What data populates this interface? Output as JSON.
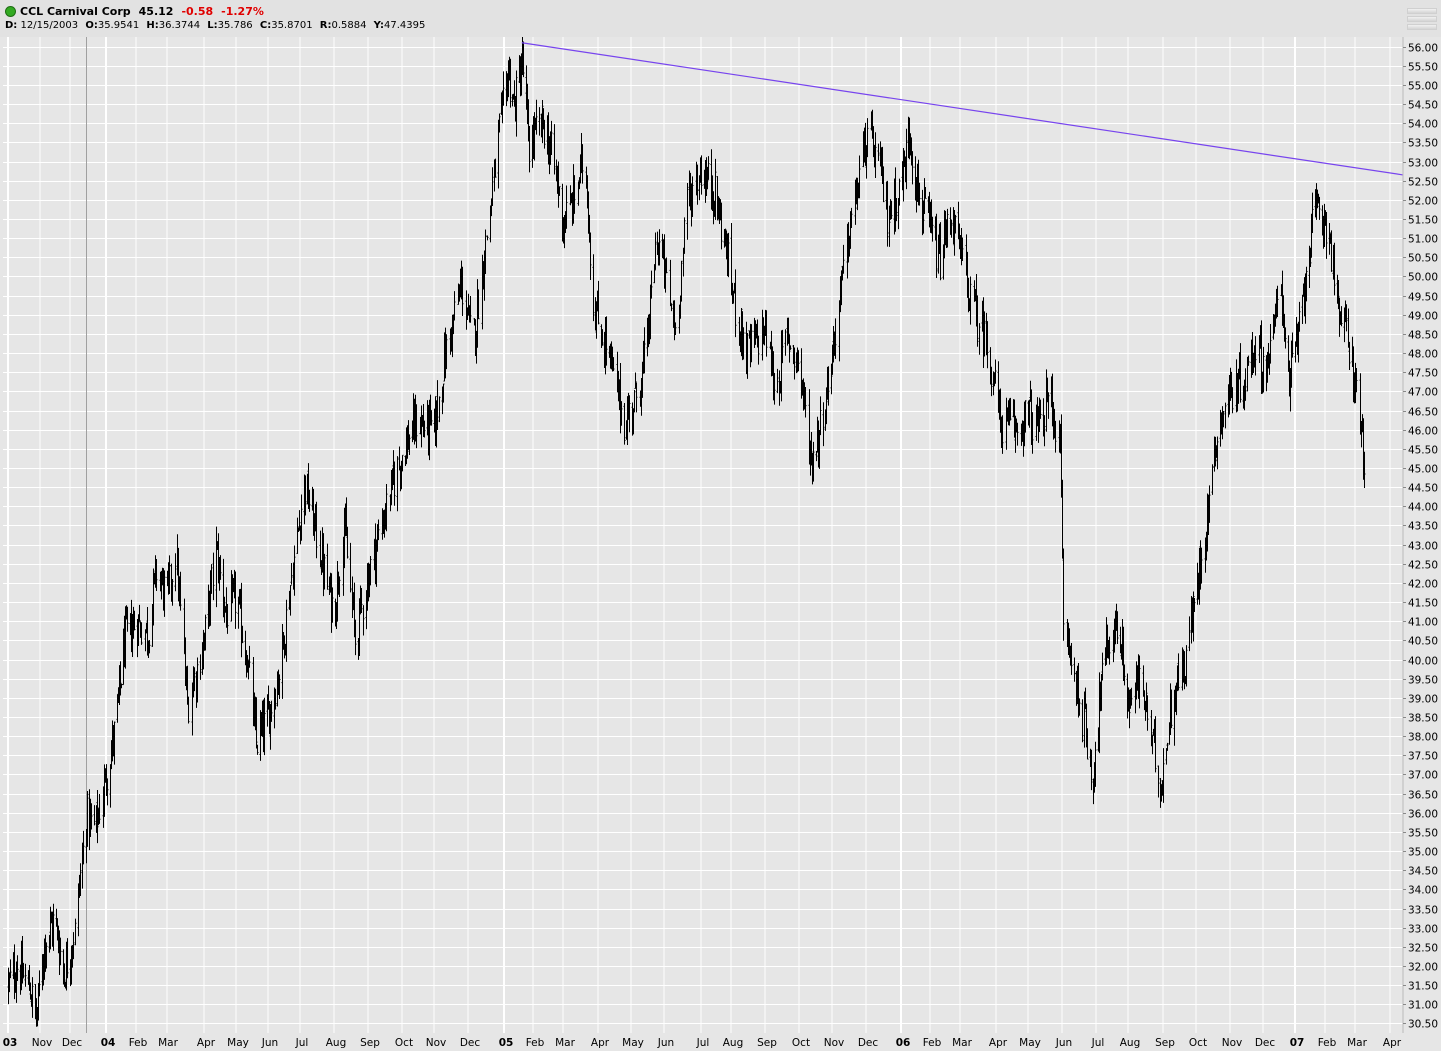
{
  "header": {
    "symbol_name": "CCL Carnival Corp",
    "last": "45.12",
    "change": "-0.58",
    "change_pct": "-1.27%",
    "ohlc": {
      "date_label": "D:",
      "date": "12/15/2003",
      "open_label": "O:",
      "open": "35.9541",
      "high_label": "H:",
      "high": "36.3744",
      "low_label": "L:",
      "low": "35.786",
      "close_label": "C:",
      "close": "35.8701",
      "range_label": "R:",
      "range": "0.5884",
      "y_label": "Y:",
      "y": "47.4395"
    },
    "status_color": "#33aa22"
  },
  "chart_data": {
    "type": "ohlc",
    "x_axis_labels": [
      "03",
      "Nov",
      "Dec",
      "04",
      "Feb",
      "Mar",
      "Apr",
      "May",
      "Jun",
      "Jul",
      "Aug",
      "Sep",
      "Oct",
      "Nov",
      "Dec",
      "05",
      "Feb",
      "Mar",
      "Apr",
      "May",
      "Jun",
      "Jul",
      "Aug",
      "Sep",
      "Oct",
      "Nov",
      "Dec",
      "06",
      "Feb",
      "Mar",
      "Apr",
      "May",
      "Jun",
      "Jul",
      "Aug",
      "Sep",
      "Oct",
      "Nov",
      "Dec",
      "07",
      "Feb",
      "Mar",
      "Apr"
    ],
    "x_axis_bold": [
      "03",
      "04",
      "05",
      "06",
      "07"
    ],
    "x_range": [
      "2003-10-01",
      "2007-04-15"
    ],
    "ylim": [
      30.25,
      56.25
    ],
    "y_ticks": [
      30.5,
      31.0,
      31.5,
      32.0,
      32.5,
      33.0,
      33.5,
      34.0,
      34.5,
      35.0,
      35.5,
      36.0,
      36.5,
      37.0,
      37.5,
      38.0,
      38.5,
      39.0,
      39.5,
      40.0,
      40.5,
      41.0,
      41.5,
      42.0,
      42.5,
      43.0,
      43.5,
      44.0,
      44.5,
      45.0,
      45.5,
      46.0,
      46.5,
      47.0,
      47.5,
      48.0,
      48.5,
      49.0,
      49.5,
      50.0,
      50.5,
      51.0,
      51.5,
      52.0,
      52.5,
      53.0,
      53.5,
      54.0,
      54.5,
      55.0,
      55.5,
      56.0
    ],
    "crosshair_date": "2003-12-15",
    "grid": true,
    "bar_color": "#000000",
    "trendline": {
      "color": "#7744ee",
      "x1": "2005-01-20",
      "y1": 56.1,
      "x2": "2007-04-15",
      "y2": 52.65
    },
    "price_path": [
      [
        "2003-10-01",
        31.5
      ],
      [
        "2003-10-10",
        32.0
      ],
      [
        "2003-10-22",
        31.4
      ],
      [
        "2003-10-28",
        30.6
      ],
      [
        "2003-11-05",
        32.6
      ],
      [
        "2003-11-15",
        33.2
      ],
      [
        "2003-11-25",
        31.8
      ],
      [
        "2003-12-05",
        32.9
      ],
      [
        "2003-12-15",
        35.9
      ],
      [
        "2003-12-22",
        35.6
      ],
      [
        "2003-12-31",
        36.8
      ],
      [
        "2004-01-10",
        38.2
      ],
      [
        "2004-01-20",
        40.5
      ],
      [
        "2004-02-01",
        41.0
      ],
      [
        "2004-02-12",
        40.7
      ],
      [
        "2004-02-20",
        42.3
      ],
      [
        "2004-03-01",
        41.6
      ],
      [
        "2004-03-08",
        42.8
      ],
      [
        "2004-03-18",
        38.8
      ],
      [
        "2004-04-01",
        40.5
      ],
      [
        "2004-04-12",
        42.8
      ],
      [
        "2004-04-22",
        41.2
      ],
      [
        "2004-05-01",
        41.6
      ],
      [
        "2004-05-12",
        40.0
      ],
      [
        "2004-05-20",
        37.8
      ],
      [
        "2004-06-01",
        38.5
      ],
      [
        "2004-06-12",
        39.8
      ],
      [
        "2004-06-24",
        42.4
      ],
      [
        "2004-07-05",
        44.6
      ],
      [
        "2004-07-15",
        43.4
      ],
      [
        "2004-07-25",
        42.0
      ],
      [
        "2004-08-01",
        41.2
      ],
      [
        "2004-08-10",
        43.6
      ],
      [
        "2004-08-20",
        40.5
      ],
      [
        "2004-09-01",
        42.2
      ],
      [
        "2004-09-15",
        43.8
      ],
      [
        "2004-10-01",
        45.4
      ],
      [
        "2004-10-15",
        46.2
      ],
      [
        "2004-11-01",
        46.0
      ],
      [
        "2004-11-10",
        47.8
      ],
      [
        "2004-11-25",
        49.8
      ],
      [
        "2004-12-05",
        48.2
      ],
      [
        "2004-12-15",
        50.6
      ],
      [
        "2004-12-28",
        53.8
      ],
      [
        "2005-01-05",
        55.4
      ],
      [
        "2005-01-12",
        54.4
      ],
      [
        "2005-01-20",
        55.6
      ],
      [
        "2005-01-28",
        53.4
      ],
      [
        "2005-02-10",
        54.0
      ],
      [
        "2005-02-20",
        53.0
      ],
      [
        "2005-03-01",
        51.4
      ],
      [
        "2005-03-10",
        52.0
      ],
      [
        "2005-03-20",
        53.2
      ],
      [
        "2005-03-28",
        49.2
      ],
      [
        "2005-04-10",
        48.0
      ],
      [
        "2005-04-25",
        46.2
      ],
      [
        "2005-05-05",
        46.8
      ],
      [
        "2005-05-15",
        48.0
      ],
      [
        "2005-05-25",
        51.0
      ],
      [
        "2005-06-01",
        50.2
      ],
      [
        "2005-06-10",
        48.6
      ],
      [
        "2005-06-20",
        52.0
      ],
      [
        "2005-07-01",
        52.8
      ],
      [
        "2005-07-15",
        52.2
      ],
      [
        "2005-07-25",
        51.0
      ],
      [
        "2005-08-05",
        49.2
      ],
      [
        "2005-08-15",
        48.0
      ],
      [
        "2005-09-01",
        48.6
      ],
      [
        "2005-09-10",
        47.0
      ],
      [
        "2005-09-20",
        48.4
      ],
      [
        "2005-10-01",
        47.8
      ],
      [
        "2005-10-12",
        45.2
      ],
      [
        "2005-10-22",
        46.2
      ],
      [
        "2005-11-01",
        48.0
      ],
      [
        "2005-11-15",
        51.0
      ],
      [
        "2005-12-01",
        53.6
      ],
      [
        "2005-12-10",
        53.2
      ],
      [
        "2005-12-20",
        51.6
      ],
      [
        "2006-01-01",
        52.4
      ],
      [
        "2006-01-10",
        53.8
      ],
      [
        "2006-01-20",
        52.0
      ],
      [
        "2006-02-01",
        51.2
      ],
      [
        "2006-02-10",
        50.4
      ],
      [
        "2006-02-20",
        51.6
      ],
      [
        "2006-03-01",
        50.6
      ],
      [
        "2006-03-12",
        49.2
      ],
      [
        "2006-03-25",
        48.2
      ],
      [
        "2006-04-05",
        46.2
      ],
      [
        "2006-04-20",
        46.0
      ],
      [
        "2006-05-01",
        46.4
      ],
      [
        "2006-05-12",
        46.0
      ],
      [
        "2006-05-20",
        47.0
      ],
      [
        "2006-05-30",
        45.6
      ],
      [
        "2006-06-02",
        41.0
      ],
      [
        "2006-06-10",
        39.8
      ],
      [
        "2006-06-20",
        38.4
      ],
      [
        "2006-06-28",
        37.0
      ],
      [
        "2006-07-05",
        39.2
      ],
      [
        "2006-07-12",
        40.4
      ],
      [
        "2006-07-22",
        41.0
      ],
      [
        "2006-08-01",
        38.8
      ],
      [
        "2006-08-12",
        39.5
      ],
      [
        "2006-08-22",
        37.8
      ],
      [
        "2006-08-30",
        36.8
      ],
      [
        "2006-09-10",
        39.2
      ],
      [
        "2006-09-20",
        39.8
      ],
      [
        "2006-10-01",
        41.8
      ],
      [
        "2006-10-10",
        43.6
      ],
      [
        "2006-10-20",
        46.0
      ],
      [
        "2006-11-01",
        47.0
      ],
      [
        "2006-11-15",
        47.4
      ],
      [
        "2006-11-25",
        48.4
      ],
      [
        "2006-12-01",
        47.6
      ],
      [
        "2006-12-10",
        48.2
      ],
      [
        "2006-12-18",
        50.0
      ],
      [
        "2006-12-25",
        47.2
      ],
      [
        "2007-01-05",
        48.6
      ],
      [
        "2007-01-15",
        50.8
      ],
      [
        "2007-01-25",
        51.8
      ],
      [
        "2007-02-05",
        51.2
      ],
      [
        "2007-02-12",
        49.2
      ],
      [
        "2007-02-22",
        48.4
      ],
      [
        "2007-03-01",
        47.2
      ],
      [
        "2007-03-06",
        45.9
      ],
      [
        "2007-03-10",
        45.12
      ]
    ]
  }
}
